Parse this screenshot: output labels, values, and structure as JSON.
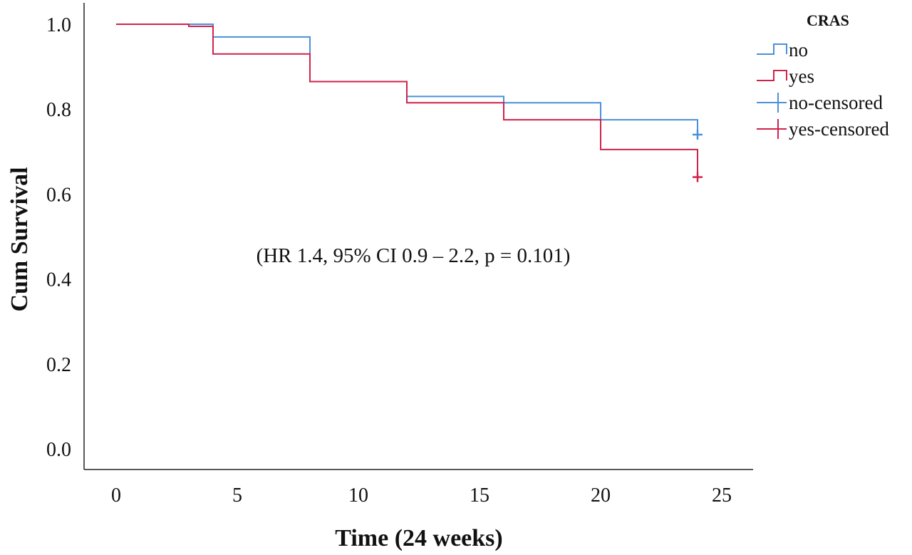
{
  "chart_data": {
    "type": "line",
    "subtype": "kaplan-meier step",
    "title": "",
    "xlabel": "Time (24 weeks)",
    "ylabel": "Cum Survival",
    "xlim": [
      0,
      25
    ],
    "ylim": [
      0,
      1.0
    ],
    "x_ticks": [
      "0",
      "5",
      "10",
      "15",
      "20",
      "25"
    ],
    "y_ticks": [
      "0.0",
      "0.2",
      "0.4",
      "0.6",
      "0.8",
      "1.0"
    ],
    "grid": false,
    "annotation": "(HR 1.4, 95% CI 0.9 – 2.2, p = 0.101)",
    "legend": {
      "title": "CRAS",
      "position": "right",
      "entries": [
        {
          "label": "no",
          "kind": "line",
          "color": "#4a90d9"
        },
        {
          "label": "yes",
          "kind": "line",
          "color": "#d0224b"
        },
        {
          "label": "no-censored",
          "kind": "censor",
          "color": "#4a90d9"
        },
        {
          "label": "yes-censored",
          "kind": "censor",
          "color": "#d0224b"
        }
      ]
    },
    "series": [
      {
        "name": "no",
        "color": "#4a90d9",
        "steps": [
          [
            0,
            1.0
          ],
          [
            4,
            0.97
          ],
          [
            8,
            0.865
          ],
          [
            12,
            0.83
          ],
          [
            16,
            0.815
          ],
          [
            20,
            0.775
          ]
        ],
        "end_x": 24,
        "end_y": 0.74,
        "censored": [
          [
            24,
            0.74
          ]
        ]
      },
      {
        "name": "yes",
        "color": "#d0224b",
        "steps": [
          [
            0,
            1.0
          ],
          [
            3,
            0.995
          ],
          [
            4,
            0.93
          ],
          [
            8,
            0.865
          ],
          [
            12,
            0.815
          ],
          [
            16,
            0.775
          ],
          [
            20,
            0.705
          ]
        ],
        "end_x": 24,
        "end_y": 0.64,
        "censored": [
          [
            24,
            0.64
          ]
        ]
      }
    ]
  }
}
